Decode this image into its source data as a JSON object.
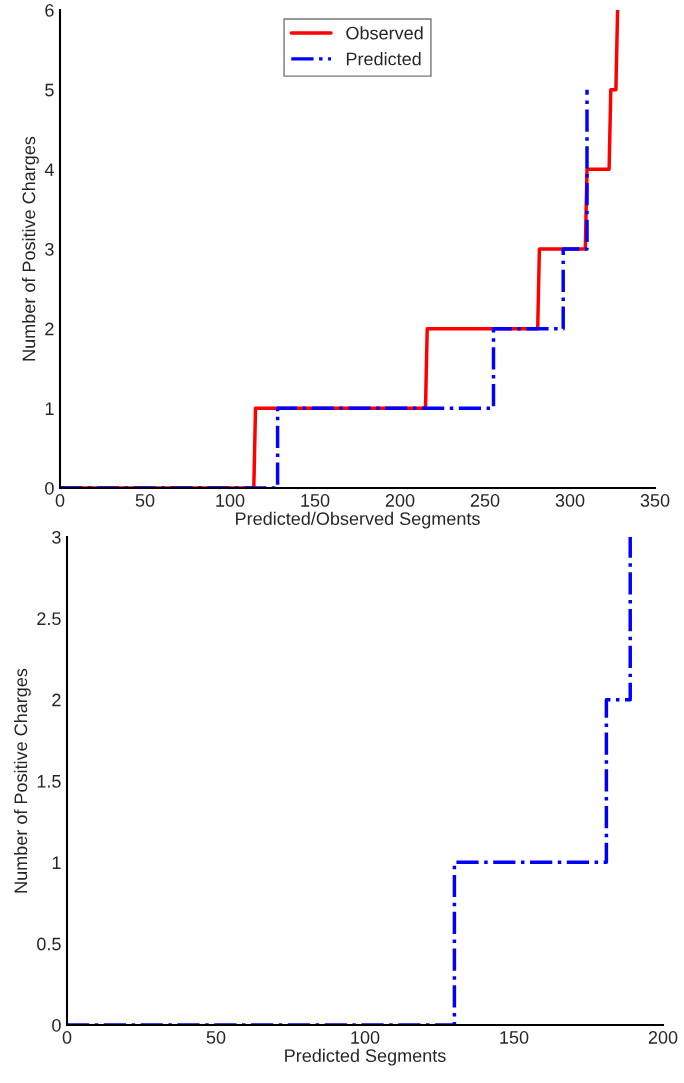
{
  "chart_data": [
    {
      "type": "line",
      "xlabel": "Predicted/Observed Segments",
      "ylabel": "Number of Positive Charges",
      "xlim": [
        0,
        350
      ],
      "xticks": [
        0,
        50,
        100,
        150,
        200,
        250,
        300,
        350
      ],
      "ylim": [
        0,
        6
      ],
      "yticks": [
        0,
        1,
        2,
        3,
        4,
        5,
        6
      ],
      "grid": false,
      "legend": "top",
      "marker": "none",
      "series": [
        {
          "name": "Observed",
          "color": "#ff0000",
          "line_style": "solid",
          "x": [
            0,
            114,
            115,
            215,
            216,
            281,
            282,
            309,
            310,
            323,
            324,
            327,
            328
          ],
          "values": [
            0,
            0,
            1,
            1,
            2,
            2,
            3,
            3,
            4,
            4,
            5,
            5,
            6
          ]
        },
        {
          "name": "Predicted",
          "color": "#0000ff",
          "line_style": "dashdot",
          "x": [
            0,
            128,
            128,
            255,
            255,
            296,
            296,
            310,
            310
          ],
          "values": [
            0,
            0,
            1,
            1,
            2,
            2,
            3,
            3,
            5
          ]
        }
      ]
    },
    {
      "type": "line",
      "xlabel": "Predicted Segments",
      "ylabel": "Number of Positive Charges",
      "xlim": [
        0,
        200
      ],
      "xticks": [
        0,
        50,
        100,
        150,
        200
      ],
      "ylim": [
        0,
        3
      ],
      "yticks": [
        0,
        0.5,
        1,
        1.5,
        2,
        2.5,
        3
      ],
      "grid": false,
      "legend": false,
      "marker": "none",
      "series": [
        {
          "color": "#0000ff",
          "line_style": "dashdot",
          "x": [
            0,
            130,
            130,
            181,
            181,
            189,
            189
          ],
          "values": [
            0,
            0,
            1,
            1,
            2,
            2,
            3
          ]
        }
      ]
    }
  ]
}
